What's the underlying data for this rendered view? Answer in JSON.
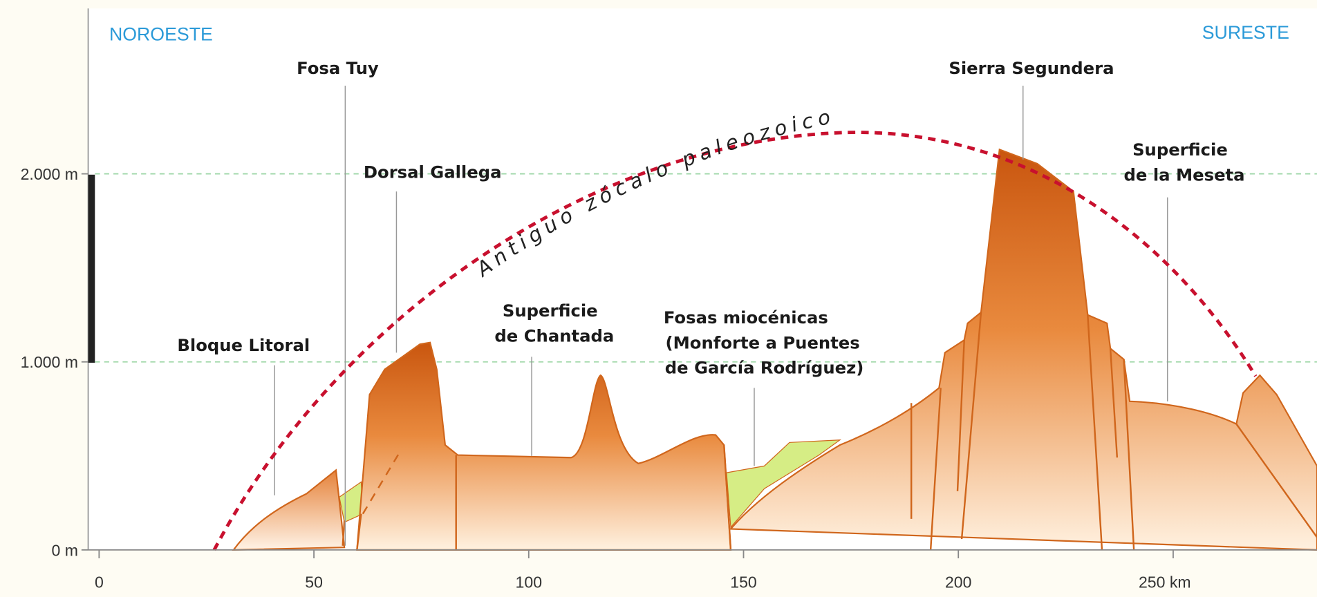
{
  "directions": {
    "left": "NOROESTE",
    "right": "SURESTE"
  },
  "arc_label": "Antiguo zócalo paleozoico",
  "labels": [
    {
      "lines": [
        "Fosa Tuy"
      ]
    },
    {
      "lines": [
        "Sierra Segundera"
      ]
    },
    {
      "lines": [
        "Dorsal Gallega"
      ]
    },
    {
      "lines": [
        "Superficie",
        "de la Meseta"
      ]
    },
    {
      "lines": [
        "Bloque Litoral"
      ]
    },
    {
      "lines": [
        "Superficie",
        "de Chantada"
      ]
    },
    {
      "lines": [
        "Fosas miocénicas",
        "(Monforte a Puentes",
        "de García Rodríguez)"
      ]
    }
  ],
  "xlim": [
    0,
    283
  ],
  "ylim": [
    0,
    2900
  ],
  "xticks": [
    0,
    50,
    100,
    150,
    200,
    {
      "value": 250,
      "label": "250 km"
    }
  ],
  "yticks": [
    {
      "value": 0,
      "label": "0 m"
    },
    {
      "value": 1000,
      "label": "1.000 m"
    },
    {
      "value": 2000,
      "label": "2.000 m"
    }
  ]
}
